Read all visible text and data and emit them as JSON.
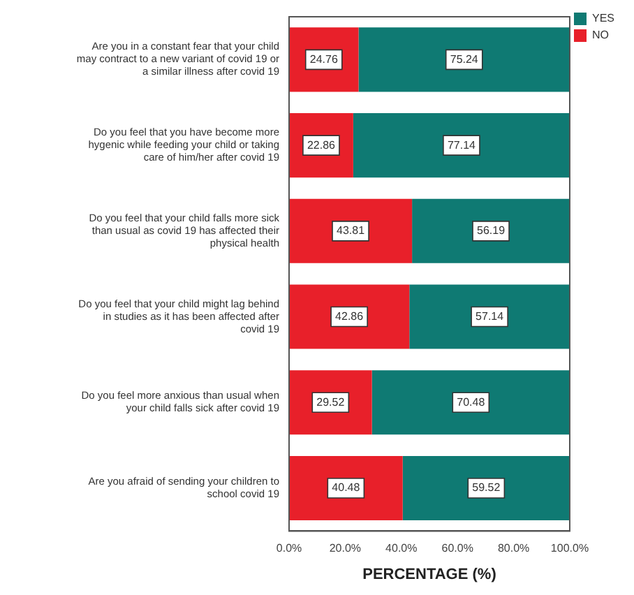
{
  "chart_data": {
    "type": "bar",
    "orientation": "horizontal",
    "stacked": true,
    "xlabel": "PERCENTAGE (%)",
    "categories": [
      "Are you in a constant fear that your child may contract to a new variant of covid 19 or a similar illness after covid 19",
      "Do you feel that you have become more hygenic while feeding your child or taking care of him/her after covid 19",
      "Do you feel that your child falls more sick than usual as covid 19 has affected their physical health",
      "Do you feel that your child might lag behind in studies as it has been affected after covid 19",
      "Do you feel more anxious than usual when your child falls sick after covid 19",
      "Are you afraid of sending your children to school covid 19"
    ],
    "series": [
      {
        "name": "NO",
        "color": "#e8202a",
        "values": [
          24.76,
          22.86,
          43.81,
          42.86,
          29.52,
          40.48
        ]
      },
      {
        "name": "YES",
        "color": "#0f7a73",
        "values": [
          75.24,
          77.14,
          56.19,
          57.14,
          70.48,
          59.52
        ]
      }
    ],
    "xlim": [
      0,
      100
    ],
    "xticks": [
      {
        "value": 0,
        "label": "0.0%"
      },
      {
        "value": 20,
        "label": "20.0%"
      },
      {
        "value": 40,
        "label": "40.0%"
      },
      {
        "value": 60,
        "label": "60.0%"
      },
      {
        "value": 80,
        "label": "80.0%"
      },
      {
        "value": 100,
        "label": "100.0%"
      }
    ],
    "grid": false,
    "legend": "top right",
    "data_labels": true
  }
}
